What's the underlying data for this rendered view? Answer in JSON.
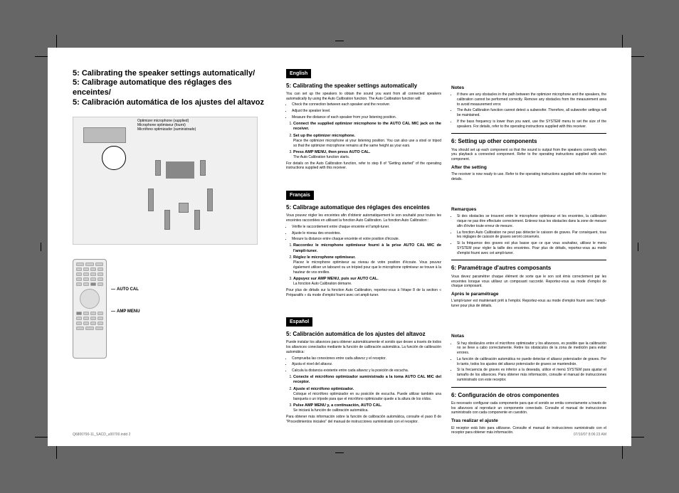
{
  "colors": {
    "page_bg": "#ffffff",
    "text": "#000000",
    "illus_bg": "#f0f0f0",
    "lang_header_bg": "#000000",
    "lang_header_fg": "#ffffff"
  },
  "title": {
    "en": "5: Calibrating the speaker settings automatically/",
    "fr": "5: Calibrage automatique des réglages des enceintes/",
    "es": "5: Calibración automática de los ajustes del altavoz"
  },
  "mic_label": "Optimizer microphone (supplied)\nMicrophone optimiseur (fourni)\nMicrófono optimizador (suministrado)",
  "remote": {
    "btn1": "AUTO CAL",
    "btn2": "AMP MENU"
  },
  "en": {
    "lang": "English",
    "s5_title": "5: Calibrating the speaker settings automatically",
    "s5_intro": "You can set up the speakers to obtain the sound you want from all connected speakers automatically by using the Auto Calibration function. The Auto Calibration function will:",
    "s5_b1": "Check the connection between each speaker and the receiver.",
    "s5_b2": "Adjust the speaker level.",
    "s5_b3": "Measure the distance of each speaker from your listening position.",
    "s5_step1": "Connect the supplied optimizer microphone to the AUTO CAL MIC jack on the receiver.",
    "s5_step2": "Set up the optimizer microphone.",
    "s5_step2b": "Place the optimizer microphone at your listening position. You can also use a stool or tripod so that the optimizer microphone remains at the same height as your ears.",
    "s5_step3": "Press AMP MENU, then press AUTO CAL.",
    "s5_step3b": "The Auto Calibration function starts.",
    "s5_tail": "For details on the Auto Calibration function, refer to step 8 of \"Getting started\" of the operating instructions supplied with this receiver.",
    "notes_h": "Notes",
    "n1": "If there are any obstacles in the path between the optimizer microphone and the speakers, the calibration cannot be performed correctly. Remove any obstacles from the measurement area to avoid measurement error.",
    "n2": "The Auto Calibration function cannot detect a subwoofer. Therefore, all subwoofer settings will be maintained.",
    "n3": "If the bass frequency is lower than you want, use the SYSTEM menu to set the size of the speakers. For details, refer to the operating instructions supplied with this receiver.",
    "s6_title": "6: Setting up other components",
    "s6_p1": "You should set up each component so that the sound is output from the speakers correctly when you playback a connected component. Refer to the operating instructions supplied with each component.",
    "s6_after_h": "After the setting",
    "s6_after_p": "The receiver is now ready to use. Refer to the operating instructions supplied with the receiver for details."
  },
  "fr": {
    "lang": "Français",
    "s5_title": "5: Calibrage automatique des réglages des enceintes",
    "s5_intro": "Vous pouvez régler les enceintes afin d'obtenir automatiquement le son souhaité pour toutes les enceintes raccordées en utilisant la fonction Auto Calibration. La fonction Auto Calibration :",
    "s5_b1": "Vérifie le raccordement entre chaque enceinte et l'ampli-tuner.",
    "s5_b2": "Ajuste le niveau des enceintes.",
    "s5_b3": "Mesure la distance entre chaque enceinte et votre position d'écoute.",
    "s5_step1": "Raccordez le microphone optimiseur fourni à la prise AUTO CAL MIC de l'ampli-tuner.",
    "s5_step2": "Réglez le microphone optimiseur.",
    "s5_step2b": "Placez le microphone optimiseur au niveau de votre position d'écoute. Vous pouvez également utiliser un tabouret ou un trépied pour que le microphone optimiseur se trouve à la hauteur de vos oreilles.",
    "s5_step3": "Appuyez sur AMP MENU, puis sur AUTO CAL.",
    "s5_step3b": "La fonction Auto Calibration démarre.",
    "s5_tail": "Pour plus de détails sur la fonction Auto Calibration, reportez-vous à l'étape 8 de la section « Préparatifs » du mode d'emploi fourni avec cet ampli-tuner.",
    "notes_h": "Remarques",
    "n1": "Si des obstacles se trouvent entre le microphone optimiseur et les enceintes, la calibration risque ne pas être effectuée correctement. Enlevez tous les obstacles dans la zone de mesure afin d'éviter toute erreur de mesure.",
    "n2": "La fonction Auto Calibration ne peut pas détecter le caisson de graves. Par conséquent, tous les réglages de caisson de graves seront conservés.",
    "n3": "Si la fréquence des graves est plus basse que ce que vous souhaitez, utilisez le menu SYSTEM pour régler la taille des enceintes. Pour plus de détails, reportez-vous au mode d'emploi fourni avec cet ampli-tuner.",
    "s6_title": "6: Paramétrage d'autres composants",
    "s6_p1": "Vous devez paramétrer chaque élément de sorte que le son soit émis correctement par les enceintes lorsque vous utilisez un composant raccordé. Reportez-vous au mode d'emploi de chaque composant.",
    "s6_after_h": "Après le paramétrage",
    "s6_after_p": "L'ampli-tuner est maintenant prêt à l'emploi. Reportez-vous au mode d'emploi fourni avec l'ampli-tuner pour plus de détails."
  },
  "es": {
    "lang": "Español",
    "s5_title": "5: Calibración automática de los ajustes del altavoz",
    "s5_intro": "Puede instalar los altavoces para obtener automáticamente el sonido que desee a través de todos los altavoces conectados mediante la función de calibración automática. La función de calibración automática:",
    "s5_b1": "Comprueba las conexiones entre cada altavoz y el receptor.",
    "s5_b2": "Ajusta el nivel del altavoz.",
    "s5_b3": "Calcula la distancia existente entre cada altavoz y la posición de escucha.",
    "s5_step1": "Conecte el micrófono optimizador suministrado a la toma AUTO CAL MIC del receptor.",
    "s5_step2": "Ajuste el micrófono optimizador.",
    "s5_step2b": "Coloque el micrófono optimizador en su posición de escucha. Puede utilizar también una banqueta o un trípode para que el micrófono optimizador quede a la altura de los oídos.",
    "s5_step3": "Pulse AMP MENU y, a continuación, AUTO CAL.",
    "s5_step3b": "Se iniciará la función de calibración automática.",
    "s5_tail": "Para obtener más información sobre la función de calibración automática, consulte el paso 8 de \"Procedimientos iniciales\" del manual de instrucciones suministrado con el receptor.",
    "notes_h": "Notas",
    "n1": "Si hay obstáculos entre el micrófono optimizador y los altavoces, es posible que la calibración no se lleve a cabo correctamente. Retire los obstáculos de la zona de medición para evitar errores.",
    "n2": "La función de calibración automática no puede detectar el altavoz potenciador de graves. Por lo tanto, todos los ajustes del altavoz potenciador de graves se mantendrán.",
    "n3": "Si la frecuencia de graves es inferior a la deseada, utilice el menú SYSTEM para ajustar el tamaño de los altavoces. Para obtener más información, consulte el manual de instrucciones suministrado con este receptor.",
    "s6_title": "6: Configuración de otros componentes",
    "s6_p1": "Es necesario configurar cada componente para que el sonido se emita correctamente a través de los altavoces al reproducir un componente conectado. Consulte el manual de instrucciones suministrado con cada componente en cuestión.",
    "s6_after_h": "Tras realizar el ajuste",
    "s6_after_p": "El receptor está listo para utilizarse. Consulte el manual de instrucciones suministrado con el receptor para obtener más información."
  },
  "footer": {
    "left": "Q6800790-11_SACD_u00700.indd   2",
    "right": "07/10/07   8:06:23 AM"
  }
}
